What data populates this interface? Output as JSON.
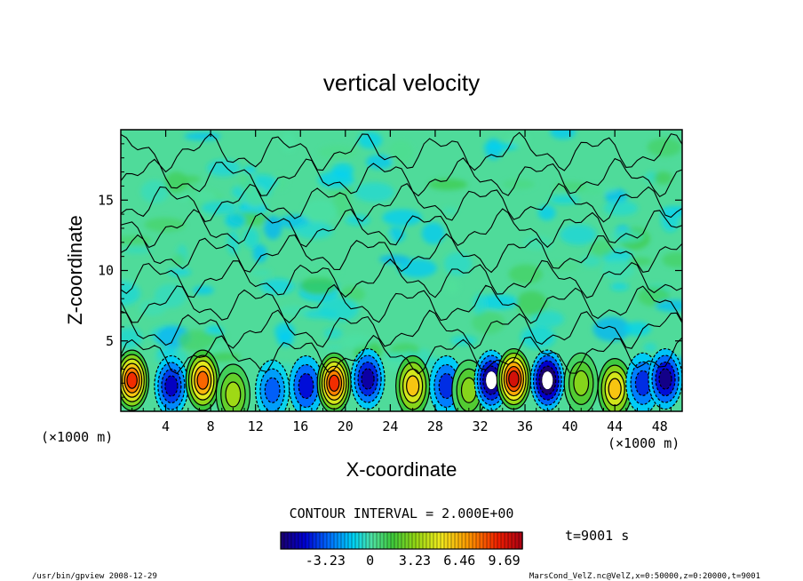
{
  "chart_data": {
    "type": "heatmap",
    "title": "vertical velocity",
    "xlabel": "X-coordinate",
    "ylabel": "Z-coordinate",
    "x_unit_left": "(×1000 m)",
    "x_unit_right": "(×1000 m)",
    "xlim": [
      0,
      50
    ],
    "ylim": [
      0,
      20
    ],
    "x_ticks": [
      "4",
      "8",
      "12",
      "16",
      "20",
      "24",
      "28",
      "32",
      "36",
      "40",
      "44",
      "48"
    ],
    "y_ticks": [
      "5",
      "10",
      "15"
    ],
    "contour_interval_text": "CONTOUR INTERVAL = 2.000E+00",
    "time_text": "t=9001 s",
    "colorbar": {
      "range": [
        -6.46,
        11.0
      ],
      "tick_labels": [
        "-3.23",
        "0",
        "3.23",
        "6.46",
        "9.69"
      ]
    },
    "cells": [
      {
        "x": 1,
        "z": 2.2,
        "w": 9.0
      },
      {
        "x": 4.5,
        "z": 1.8,
        "w": -5.0
      },
      {
        "x": 7.3,
        "z": 2.2,
        "w": 8.0
      },
      {
        "x": 10,
        "z": 1.2,
        "w": 3.5
      },
      {
        "x": 13.5,
        "z": 1.5,
        "w": -3.2
      },
      {
        "x": 16.5,
        "z": 1.8,
        "w": -4.5
      },
      {
        "x": 19,
        "z": 2.0,
        "w": 9.0
      },
      {
        "x": 22,
        "z": 2.3,
        "w": -5.5
      },
      {
        "x": 26,
        "z": 1.8,
        "w": 6.0
      },
      {
        "x": 29,
        "z": 1.8,
        "w": -4.0
      },
      {
        "x": 31,
        "z": 1.5,
        "w": 3.0
      },
      {
        "x": 33,
        "z": 2.2,
        "w": -7.0
      },
      {
        "x": 35,
        "z": 2.3,
        "w": 10.0
      },
      {
        "x": 38,
        "z": 2.2,
        "w": -8.0
      },
      {
        "x": 41,
        "z": 2.0,
        "w": 3.0
      },
      {
        "x": 44,
        "z": 1.6,
        "w": 6.0
      },
      {
        "x": 46.5,
        "z": 2.0,
        "w": -4.0
      },
      {
        "x": 48.5,
        "z": 2.3,
        "w": -6.0
      }
    ]
  },
  "footer": {
    "left": "/usr/bin/gpview 2008-12-29",
    "right": "MarsCond_VelZ.nc@VelZ,x=0:50000,z=0:20000,t=9001"
  },
  "colors": {
    "background": "#ffffff",
    "contour": "#000000"
  }
}
